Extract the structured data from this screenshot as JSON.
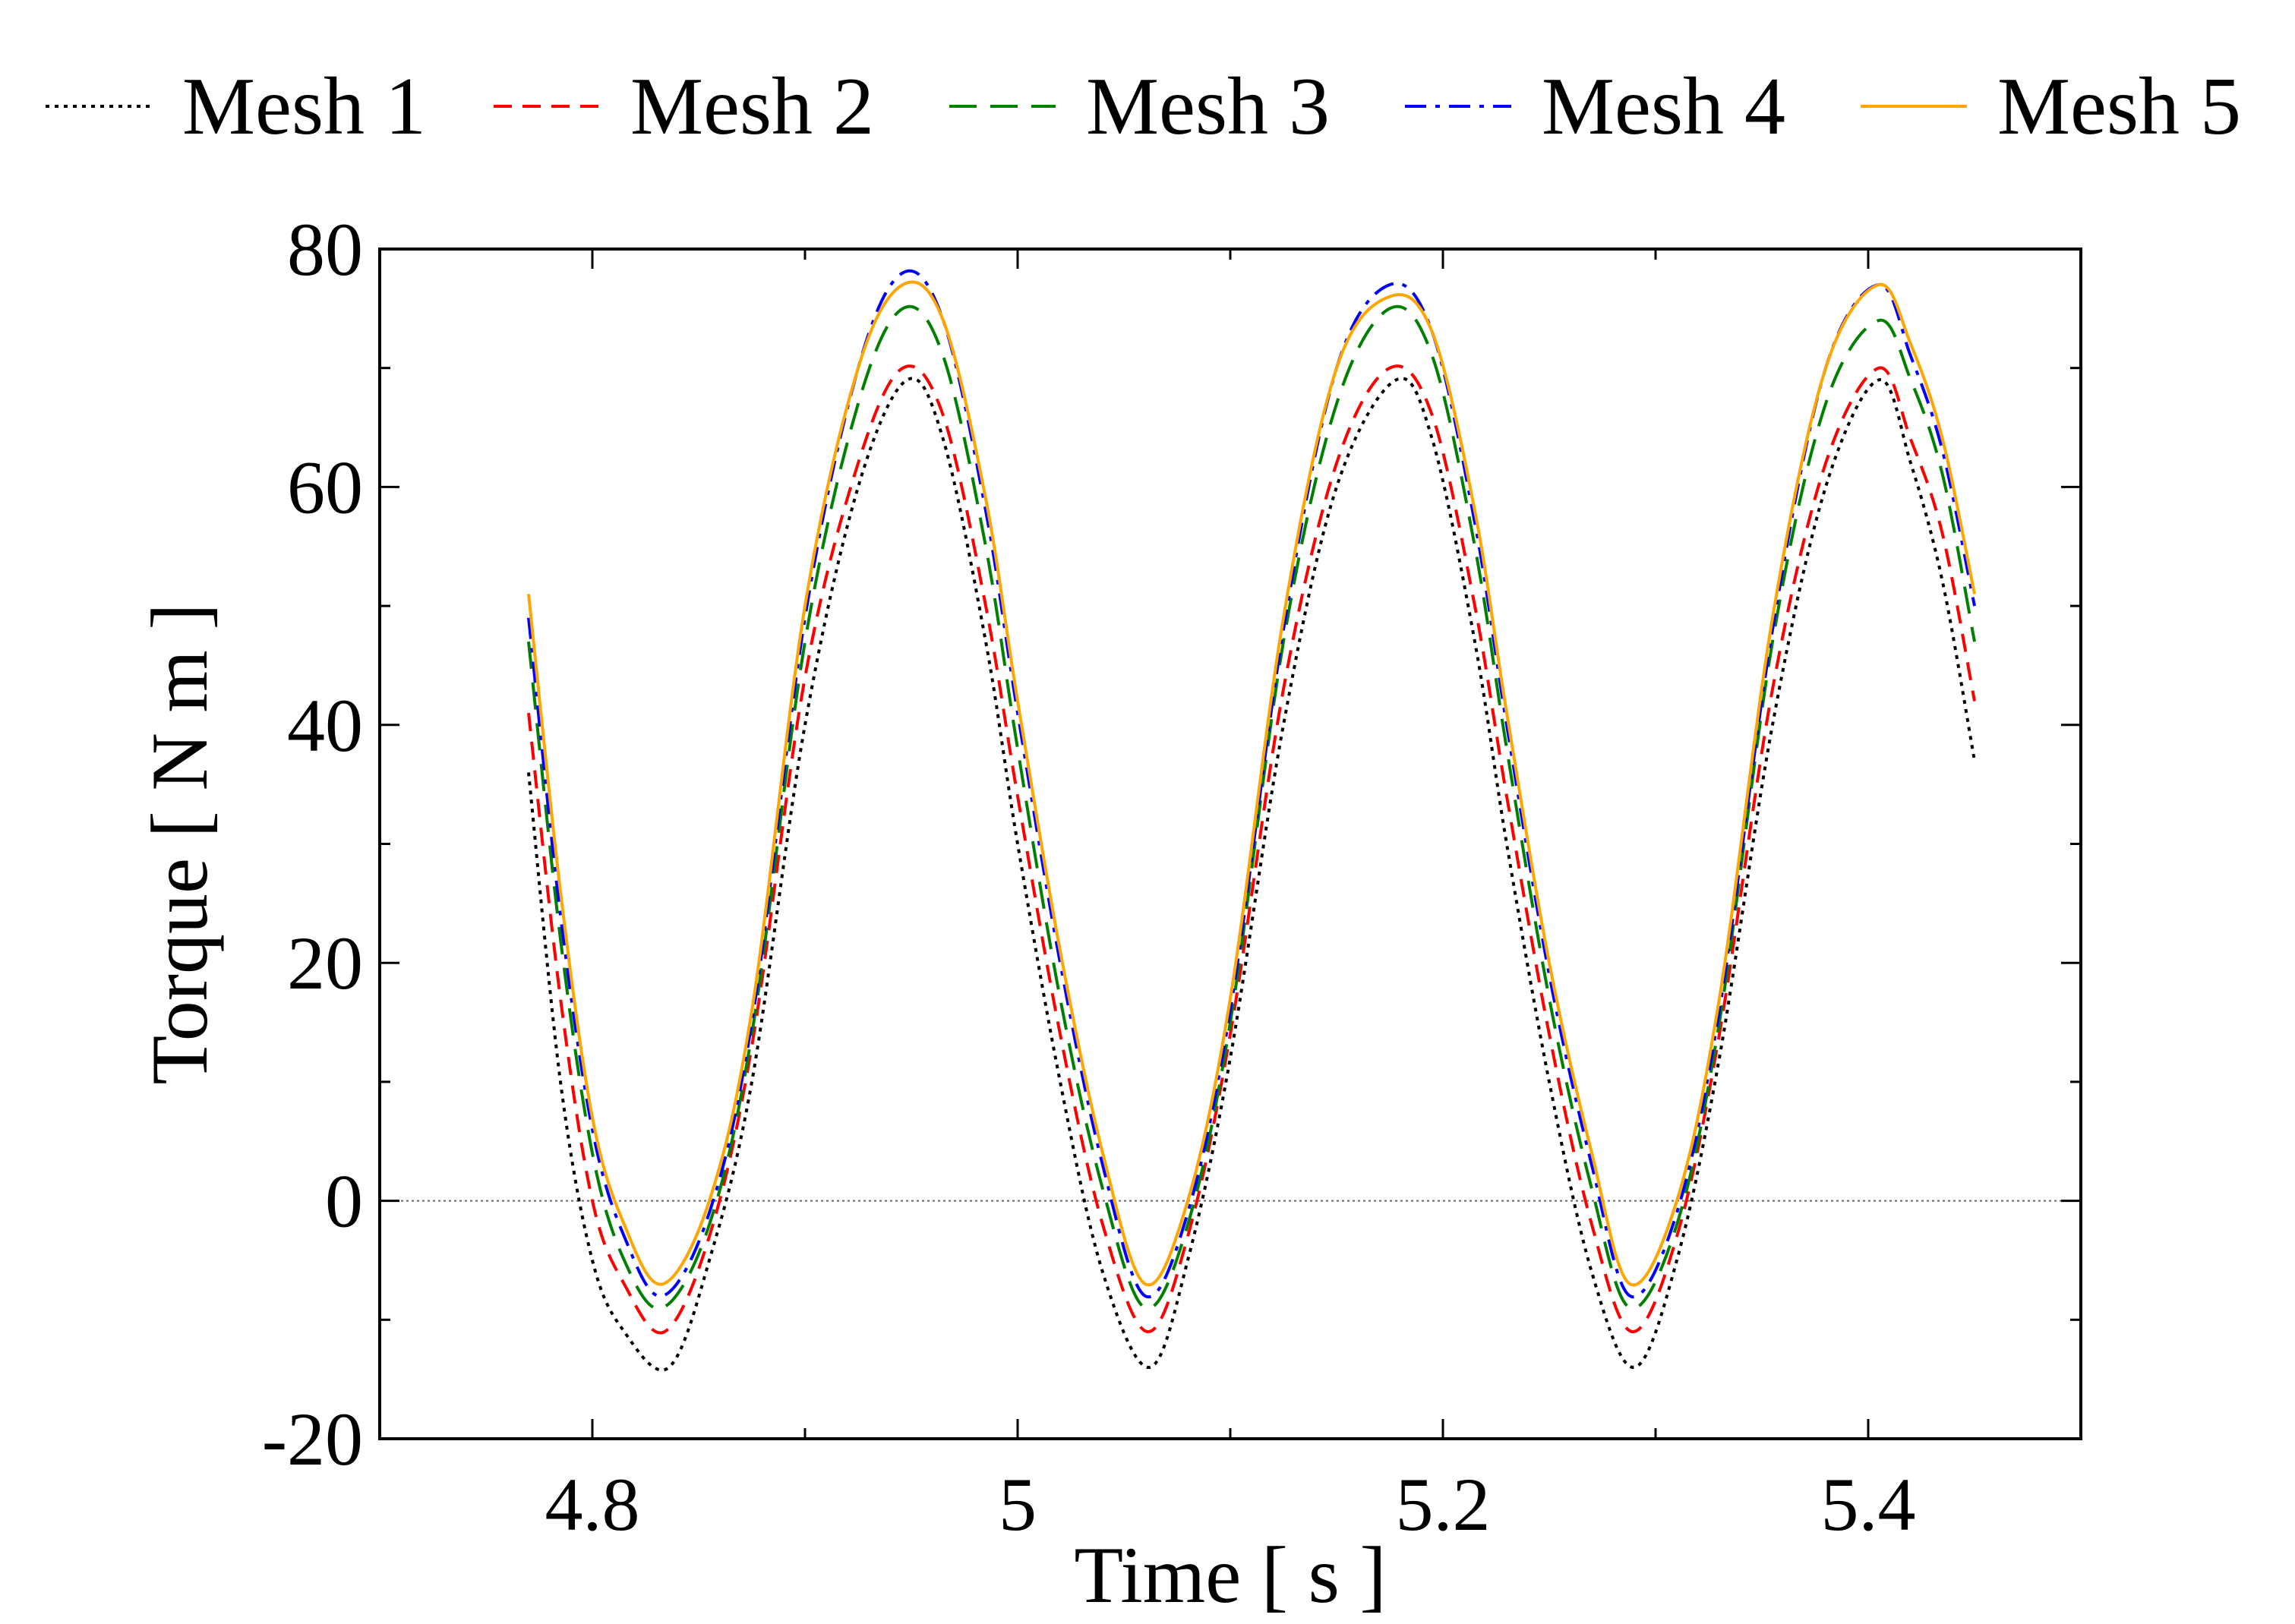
{
  "chart_data": {
    "type": "line",
    "title": "",
    "xlabel": "Time  [ s ]",
    "ylabel": "Torque [ N m ]",
    "xlim": [
      4.7,
      5.5
    ],
    "ylim": [
      -20,
      80
    ],
    "xticks": [
      4.8,
      5,
      5.2,
      5.4
    ],
    "xtick_labels": [
      "4.8",
      "5",
      "5.2",
      "5.4"
    ],
    "yticks": [
      -20,
      0,
      20,
      40,
      60,
      80
    ],
    "ytick_labels": [
      "-20",
      "0",
      "20",
      "40",
      "60",
      "80"
    ],
    "zero_line": true,
    "legend_position": "top",
    "series": [
      {
        "name": "Mesh 1",
        "color": "#000000",
        "dash": "dotted",
        "x": [
          4.77,
          4.785,
          4.8,
          4.815,
          4.836,
          4.855,
          4.875,
          4.9,
          4.925,
          4.948,
          4.965,
          4.985,
          5.0,
          5.02,
          5.04,
          5.062,
          5.08,
          5.1,
          5.125,
          5.15,
          5.178,
          5.195,
          5.215,
          5.23,
          5.25,
          5.27,
          5.29,
          5.31,
          5.33,
          5.355,
          5.38,
          5.405,
          5.42,
          5.435,
          5.45
        ],
        "y": [
          36,
          10,
          -5,
          -11,
          -14,
          -5,
          10,
          40,
          60,
          69,
          64,
          47,
          30,
          10,
          -6,
          -14,
          -5,
          12,
          40,
          60,
          69,
          64,
          47,
          30,
          10,
          -6,
          -14,
          -5,
          12,
          40,
          60,
          69,
          62,
          52,
          37
        ]
      },
      {
        "name": "Mesh 2",
        "color": "#ff0000",
        "dash": "dashed",
        "x": [
          4.77,
          4.785,
          4.8,
          4.815,
          4.834,
          4.855,
          4.875,
          4.9,
          4.925,
          4.946,
          4.965,
          4.985,
          5.0,
          5.02,
          5.04,
          5.061,
          5.08,
          5.1,
          5.125,
          5.15,
          5.175,
          5.195,
          5.215,
          5.23,
          5.25,
          5.27,
          5.289,
          5.31,
          5.33,
          5.355,
          5.38,
          5.405,
          5.42,
          5.435,
          5.45
        ],
        "y": [
          41,
          17,
          0,
          -7,
          -11,
          -3,
          13,
          44,
          62,
          70,
          66,
          50,
          34,
          14,
          -2,
          -11,
          -3,
          14,
          43,
          62,
          70,
          66,
          50,
          34,
          14,
          -2,
          -11,
          -3,
          14,
          43,
          62,
          70,
          64,
          56,
          42
        ]
      },
      {
        "name": "Mesh 3",
        "color": "#008000",
        "dash": "longdash",
        "x": [
          4.77,
          4.785,
          4.8,
          4.815,
          4.833,
          4.855,
          4.875,
          4.9,
          4.925,
          4.946,
          4.965,
          4.985,
          5.0,
          5.02,
          5.04,
          5.06,
          5.08,
          5.1,
          5.125,
          5.15,
          5.175,
          5.195,
          5.215,
          5.23,
          5.25,
          5.27,
          5.288,
          5.31,
          5.33,
          5.355,
          5.38,
          5.405,
          5.42,
          5.435,
          5.45
        ],
        "y": [
          47,
          22,
          4,
          -5,
          -9,
          -2,
          14,
          47,
          67,
          75,
          71,
          55,
          38,
          17,
          1,
          -9,
          -2,
          15,
          47,
          67,
          75,
          71,
          55,
          38,
          17,
          1,
          -9,
          -2,
          15,
          47,
          67,
          74,
          69,
          61,
          47
        ]
      },
      {
        "name": "Mesh 4",
        "color": "#0000ff",
        "dash": "dashdot",
        "x": [
          4.77,
          4.785,
          4.8,
          4.815,
          4.833,
          4.855,
          4.875,
          4.9,
          4.925,
          4.946,
          4.965,
          4.985,
          5.0,
          5.02,
          5.04,
          5.06,
          5.08,
          5.1,
          5.125,
          5.15,
          5.175,
          5.195,
          5.215,
          5.23,
          5.25,
          5.27,
          5.288,
          5.31,
          5.33,
          5.355,
          5.38,
          5.405,
          5.42,
          5.435,
          5.45
        ],
        "y": [
          49,
          24,
          6,
          -3,
          -8,
          -1,
          15,
          49,
          70,
          78,
          74,
          58,
          41,
          20,
          3,
          -8,
          -1,
          16,
          48,
          70,
          77,
          73,
          57,
          40,
          19,
          3,
          -8,
          -1,
          16,
          48,
          70,
          77,
          71,
          63,
          50
        ]
      },
      {
        "name": "Mesh 5",
        "color": "#ffa500",
        "dash": "solid",
        "x": [
          4.77,
          4.785,
          4.8,
          4.815,
          4.833,
          4.855,
          4.875,
          4.9,
          4.925,
          4.946,
          4.965,
          4.985,
          5.0,
          5.02,
          5.04,
          5.06,
          5.08,
          5.1,
          5.125,
          5.15,
          5.175,
          5.195,
          5.215,
          5.23,
          5.25,
          5.27,
          5.288,
          5.31,
          5.33,
          5.355,
          5.38,
          5.405,
          5.42,
          5.435,
          5.45
        ],
        "y": [
          51,
          26,
          7,
          -2,
          -7,
          0,
          16,
          50,
          70,
          77,
          74,
          59,
          42,
          21,
          4,
          -7,
          0,
          17,
          49,
          70,
          76,
          73,
          58,
          41,
          20,
          4,
          -7,
          0,
          17,
          49,
          70,
          77,
          72,
          64,
          51
        ]
      }
    ]
  }
}
